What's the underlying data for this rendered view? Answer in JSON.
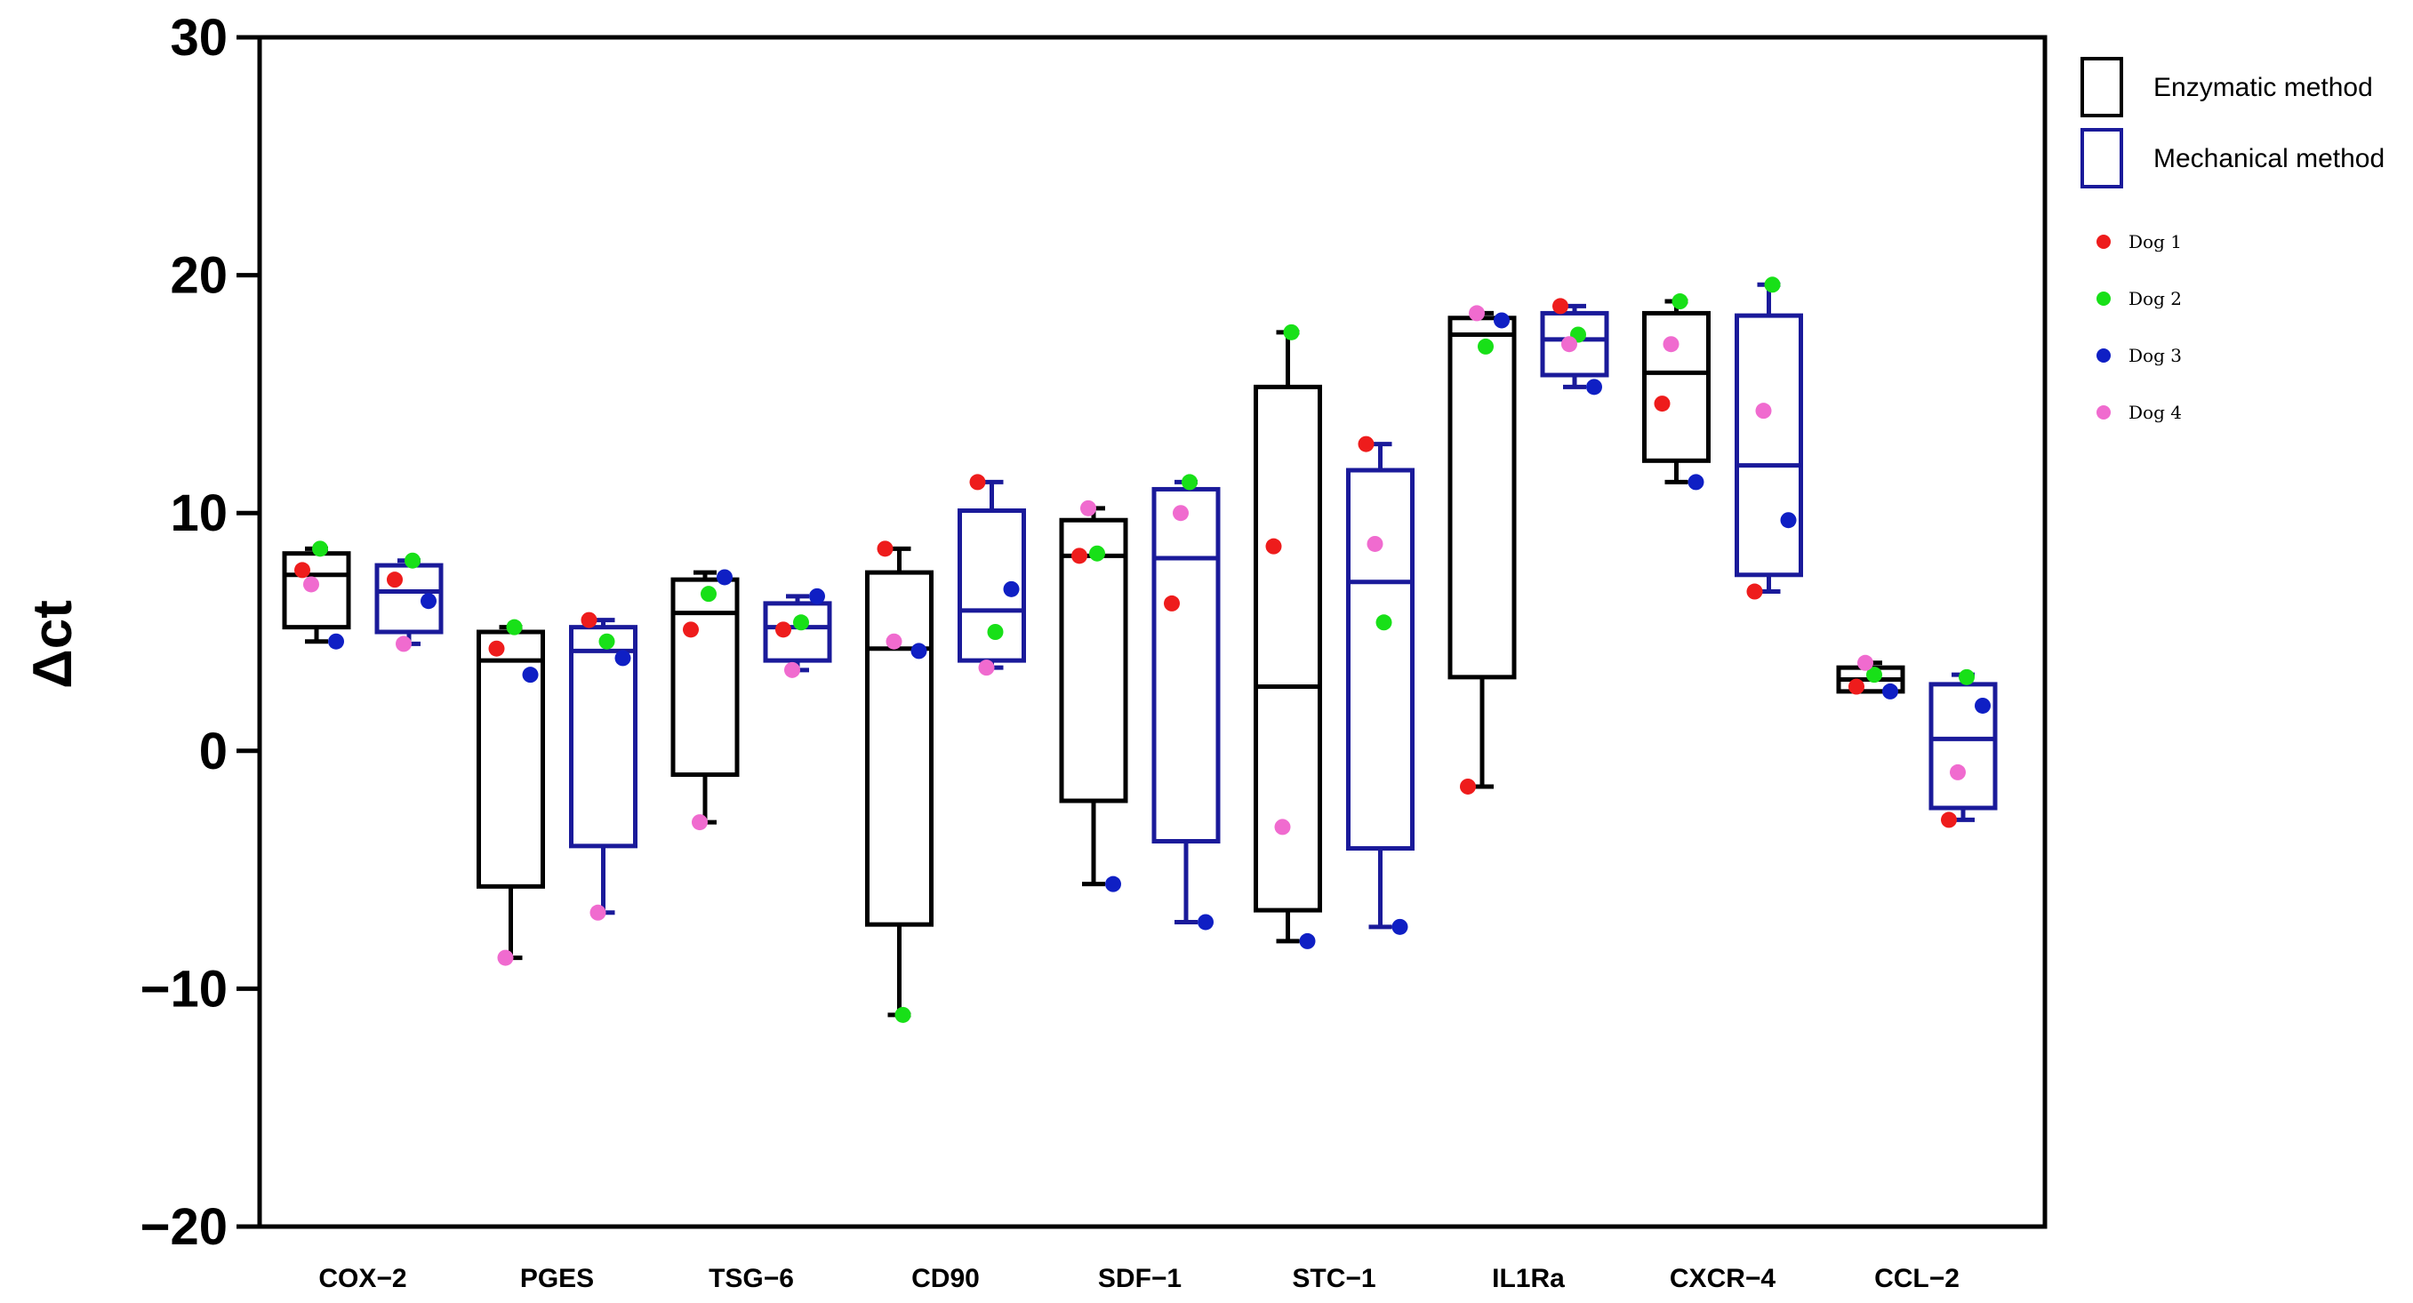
{
  "chart_data": {
    "type": "box",
    "ylabel": "Δct",
    "ylim": [
      -20,
      30
    ],
    "yticks": [
      "30",
      "20",
      "10",
      "0",
      "−10",
      "−20"
    ],
    "categories": [
      "COX−2",
      "PGES",
      "TSG−6",
      "CD90",
      "SDF−1",
      "STC−1",
      "IL1Ra",
      "CXCR−4",
      "CCL−2"
    ],
    "legend": {
      "methods": [
        {
          "name": "Enzymatic method",
          "color": "#000000"
        },
        {
          "name": "Mechanical method",
          "color": "#1a1a9a"
        }
      ],
      "dogs": [
        {
          "name": "Dog 1",
          "color": "#ee1c1c"
        },
        {
          "name": "Dog 2",
          "color": "#18e018"
        },
        {
          "name": "Dog 3",
          "color": "#0f1fc4"
        },
        {
          "name": "Dog 4",
          "color": "#f06bcf"
        }
      ]
    },
    "series": [
      {
        "name": "Enzymatic method",
        "color": "#000000",
        "boxes": [
          {
            "category": "COX−2",
            "min": 4.6,
            "q1": 5.2,
            "median": 7.4,
            "q3": 8.3,
            "max": 8.5
          },
          {
            "category": "PGES",
            "min": -8.7,
            "q1": -5.7,
            "median": 3.8,
            "q3": 5.0,
            "max": 5.2
          },
          {
            "category": "TSG−6",
            "min": -3.0,
            "q1": -1.0,
            "median": 5.8,
            "q3": 7.2,
            "max": 7.5
          },
          {
            "category": "CD90",
            "min": -11.1,
            "q1": -7.3,
            "median": 4.3,
            "q3": 7.5,
            "max": 8.5
          },
          {
            "category": "SDF−1",
            "min": -5.6,
            "q1": -2.1,
            "median": 8.2,
            "q3": 9.7,
            "max": 10.2
          },
          {
            "category": "STC−1",
            "min": -8.0,
            "q1": -6.7,
            "median": 2.7,
            "q3": 15.3,
            "max": 17.6
          },
          {
            "category": "IL1Ra",
            "min": -1.5,
            "q1": 3.1,
            "median": 17.5,
            "q3": 18.2,
            "max": 18.4
          },
          {
            "category": "CXCR−4",
            "min": 11.3,
            "q1": 12.2,
            "median": 15.9,
            "q3": 18.4,
            "max": 18.9
          },
          {
            "category": "CCL−2",
            "min": 2.5,
            "q1": 2.5,
            "median": 3.0,
            "q3": 3.5,
            "max": 3.7
          }
        ]
      },
      {
        "name": "Mechanical method",
        "color": "#1a1a9a",
        "boxes": [
          {
            "category": "COX−2",
            "min": 4.5,
            "q1": 5.0,
            "median": 6.7,
            "q3": 7.8,
            "max": 8.0
          },
          {
            "category": "PGES",
            "min": -6.8,
            "q1": -4.0,
            "median": 4.2,
            "q3": 5.2,
            "max": 5.5
          },
          {
            "category": "TSG−6",
            "min": 3.4,
            "q1": 3.8,
            "median": 5.2,
            "q3": 6.2,
            "max": 6.5
          },
          {
            "category": "CD90",
            "min": 3.5,
            "q1": 3.8,
            "median": 5.9,
            "q3": 10.1,
            "max": 11.3
          },
          {
            "category": "SDF−1",
            "min": -7.2,
            "q1": -3.8,
            "median": 8.1,
            "q3": 11.0,
            "max": 11.3
          },
          {
            "category": "STC−1",
            "min": -7.4,
            "q1": -4.1,
            "median": 7.1,
            "q3": 11.8,
            "max": 12.9
          },
          {
            "category": "IL1Ra",
            "min": 15.3,
            "q1": 15.8,
            "median": 17.3,
            "q3": 18.4,
            "max": 18.7
          },
          {
            "category": "CXCR−4",
            "min": 6.7,
            "q1": 7.4,
            "median": 12.0,
            "q3": 18.3,
            "max": 19.6
          },
          {
            "category": "CCL−2",
            "min": -2.9,
            "q1": -2.4,
            "median": 0.5,
            "q3": 2.8,
            "max": 3.2
          }
        ]
      }
    ],
    "points": [
      {
        "category": "COX−2",
        "method": "Enzymatic method",
        "values": [
          7.6,
          8.5,
          4.6,
          7.0
        ]
      },
      {
        "category": "COX−2",
        "method": "Mechanical method",
        "values": [
          7.2,
          8.0,
          6.3,
          4.5
        ]
      },
      {
        "category": "PGES",
        "method": "Enzymatic method",
        "values": [
          4.3,
          5.2,
          3.2,
          -8.7
        ]
      },
      {
        "category": "PGES",
        "method": "Mechanical method",
        "values": [
          5.5,
          4.6,
          3.9,
          -6.8
        ]
      },
      {
        "category": "TSG−6",
        "method": "Enzymatic method",
        "values": [
          5.1,
          6.6,
          7.3,
          -3.0
        ]
      },
      {
        "category": "TSG−6",
        "method": "Mechanical method",
        "values": [
          5.1,
          5.4,
          6.5,
          3.4
        ]
      },
      {
        "category": "CD90",
        "method": "Enzymatic method",
        "values": [
          8.5,
          -11.1,
          4.2,
          4.6
        ]
      },
      {
        "category": "CD90",
        "method": "Mechanical method",
        "values": [
          11.3,
          5.0,
          6.8,
          3.5
        ]
      },
      {
        "category": "SDF−1",
        "method": "Enzymatic method",
        "values": [
          8.2,
          8.3,
          -5.6,
          10.2
        ]
      },
      {
        "category": "SDF−1",
        "method": "Mechanical method",
        "values": [
          6.2,
          11.3,
          -7.2,
          10.0
        ]
      },
      {
        "category": "STC−1",
        "method": "Enzymatic method",
        "values": [
          8.6,
          17.6,
          -8.0,
          -3.2
        ]
      },
      {
        "category": "STC−1",
        "method": "Mechanical method",
        "values": [
          12.9,
          5.4,
          -7.4,
          8.7
        ]
      },
      {
        "category": "IL1Ra",
        "method": "Enzymatic method",
        "values": [
          -1.5,
          17.0,
          18.1,
          18.4
        ]
      },
      {
        "category": "IL1Ra",
        "method": "Mechanical method",
        "values": [
          18.7,
          17.5,
          15.3,
          17.1
        ]
      },
      {
        "category": "CXCR−4",
        "method": "Enzymatic method",
        "values": [
          14.6,
          18.9,
          11.3,
          17.1
        ]
      },
      {
        "category": "CXCR−4",
        "method": "Mechanical method",
        "values": [
          6.7,
          19.6,
          9.7,
          14.3
        ]
      },
      {
        "category": "CCL−2",
        "method": "Enzymatic method",
        "values": [
          2.7,
          3.2,
          2.5,
          3.7
        ]
      },
      {
        "category": "CCL−2",
        "method": "Mechanical method",
        "values": [
          -2.9,
          3.1,
          1.9,
          -0.9
        ]
      }
    ],
    "grid": false,
    "legend_position": "right"
  }
}
